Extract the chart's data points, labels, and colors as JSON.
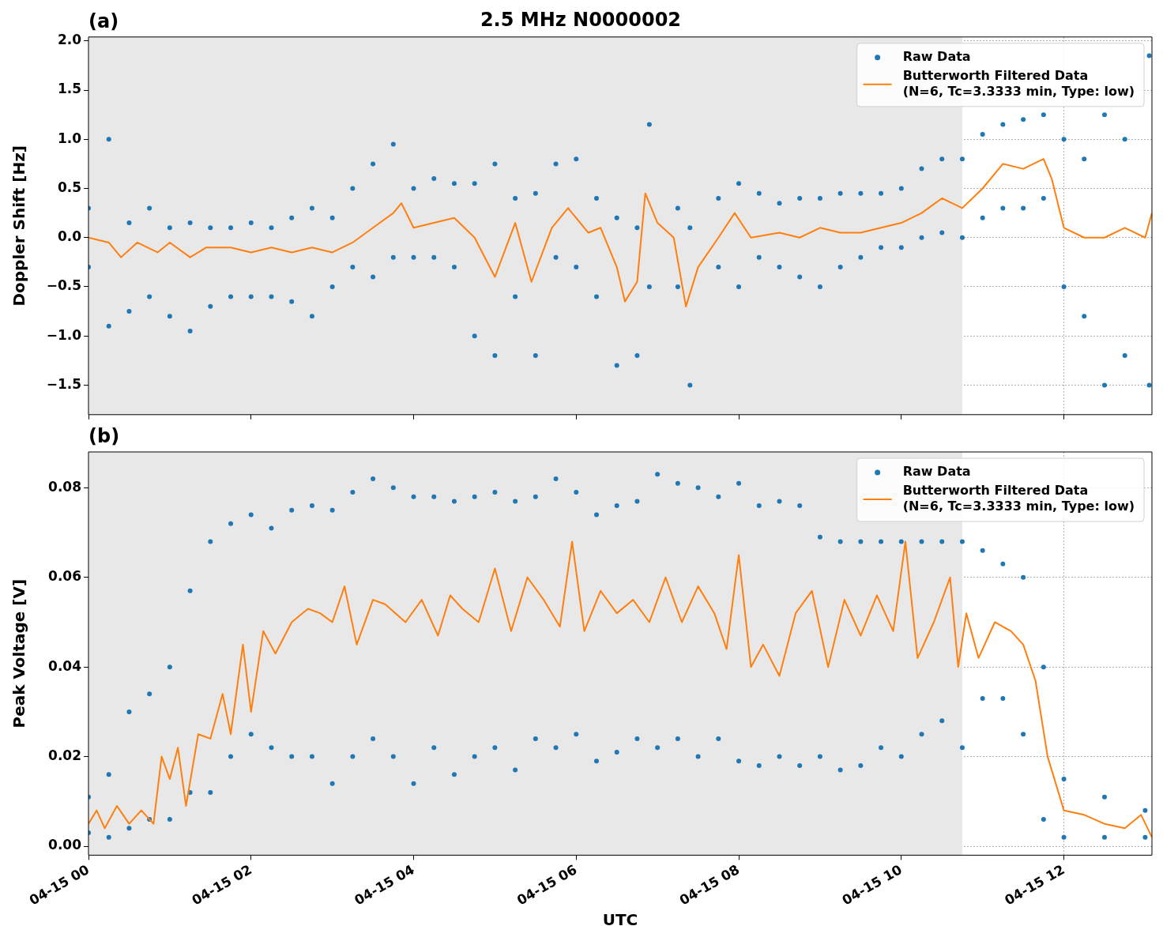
{
  "chart_data": [
    {
      "type": "scatter",
      "title": "2.5 MHz N0000002",
      "annotations": [
        "(a)"
      ],
      "ylabel": "Doppler Shift [Hz]",
      "xlim": [
        "--04-15T00:00",
        "--04-15T13:05"
      ],
      "xticks": [
        {
          "value": "--04-15T00:00",
          "label": null
        },
        {
          "value": "--04-15T02:00",
          "label": null
        },
        {
          "value": "--04-15T04:00",
          "label": null
        },
        {
          "value": "--04-15T06:00",
          "label": null
        },
        {
          "value": "--04-15T08:00",
          "label": null
        },
        {
          "value": "--04-15T10:00",
          "label": null
        },
        {
          "value": "--04-15T12:00",
          "label": null
        }
      ],
      "ylim": [
        -1.8,
        2.04
      ],
      "yticks": [
        {
          "value": -1.5,
          "label": "−1.5"
        },
        {
          "value": -1,
          "label": "−1.0"
        },
        {
          "value": -0.5,
          "label": "−0.5"
        },
        {
          "value": 0,
          "label": "0.0"
        },
        {
          "value": 0.5,
          "label": "0.5"
        },
        {
          "value": 1,
          "label": "1.0"
        },
        {
          "value": 1.5,
          "label": "1.5"
        },
        {
          "value": 2,
          "label": "2.0"
        }
      ],
      "grid": true,
      "legend": "top right",
      "tick_labels": "y",
      "bands": [
        {
          "axis": "x",
          "from": "--04-15T00:00",
          "to": "--04-15T10:45",
          "color": "#e8e8e8"
        }
      ],
      "series": [
        {
          "name": "Raw Data",
          "color": "#1f77b4",
          "marker": "circle",
          "x": [
            "--04-15T00:00",
            "--04-15T00:00",
            "--04-15T00:15",
            "--04-15T00:15",
            "--04-15T00:30",
            "--04-15T00:30",
            "--04-15T00:45",
            "--04-15T00:45",
            "--04-15T01:00",
            "--04-15T01:00",
            "--04-15T01:15",
            "--04-15T01:15",
            "--04-15T01:30",
            "--04-15T01:30",
            "--04-15T01:45",
            "--04-15T01:45",
            "--04-15T02:00",
            "--04-15T02:00",
            "--04-15T02:15",
            "--04-15T02:15",
            "--04-15T02:30",
            "--04-15T02:30",
            "--04-15T02:45",
            "--04-15T02:45",
            "--04-15T03:00",
            "--04-15T03:00",
            "--04-15T03:15",
            "--04-15T03:15",
            "--04-15T03:30",
            "--04-15T03:30",
            "--04-15T03:45",
            "--04-15T03:45",
            "--04-15T04:00",
            "--04-15T04:00",
            "--04-15T04:15",
            "--04-15T04:15",
            "--04-15T04:30",
            "--04-15T04:30",
            "--04-15T04:45",
            "--04-15T04:45",
            "--04-15T05:00",
            "--04-15T05:00",
            "--04-15T05:15",
            "--04-15T05:15",
            "--04-15T05:30",
            "--04-15T05:30",
            "--04-15T05:45",
            "--04-15T05:45",
            "--04-15T06:00",
            "--04-15T06:00",
            "--04-15T06:15",
            "--04-15T06:15",
            "--04-15T06:30",
            "--04-15T06:30",
            "--04-15T06:45",
            "--04-15T06:45",
            "--04-15T06:54",
            "--04-15T06:54",
            "--04-15T07:15",
            "--04-15T07:15",
            "--04-15T07:24",
            "--04-15T07:24",
            "--04-15T07:45",
            "--04-15T07:45",
            "--04-15T08:00",
            "--04-15T08:00",
            "--04-15T08:15",
            "--04-15T08:15",
            "--04-15T08:30",
            "--04-15T08:30",
            "--04-15T08:45",
            "--04-15T08:45",
            "--04-15T09:00",
            "--04-15T09:00",
            "--04-15T09:15",
            "--04-15T09:15",
            "--04-15T09:30",
            "--04-15T09:30",
            "--04-15T09:45",
            "--04-15T09:45",
            "--04-15T10:00",
            "--04-15T10:00",
            "--04-15T10:15",
            "--04-15T10:15",
            "--04-15T10:30",
            "--04-15T10:30",
            "--04-15T10:45",
            "--04-15T10:45",
            "--04-15T11:00",
            "--04-15T11:00",
            "--04-15T11:15",
            "--04-15T11:15",
            "--04-15T11:30",
            "--04-15T11:30",
            "--04-15T11:45",
            "--04-15T11:45",
            "--04-15T12:00",
            "--04-15T12:00",
            "--04-15T12:15",
            "--04-15T12:15",
            "--04-15T12:30",
            "--04-15T12:30",
            "--04-15T12:45",
            "--04-15T12:45",
            "--04-15T13:03",
            "--04-15T13:03"
          ],
          "values": [
            0.3,
            -0.3,
            1.0,
            -0.9,
            0.15,
            -0.75,
            0.3,
            -0.6,
            0.1,
            -0.8,
            0.15,
            -0.95,
            0.1,
            -0.7,
            0.1,
            -0.6,
            0.15,
            -0.6,
            0.1,
            -0.6,
            0.2,
            -0.65,
            0.3,
            -0.8,
            0.2,
            -0.5,
            0.5,
            -0.3,
            0.75,
            -0.4,
            0.95,
            -0.2,
            0.5,
            -0.2,
            0.6,
            -0.2,
            0.55,
            -0.3,
            0.55,
            -1.0,
            0.75,
            -1.2,
            0.4,
            -0.6,
            0.45,
            -1.2,
            0.75,
            -0.2,
            0.8,
            -0.3,
            0.4,
            -0.6,
            0.2,
            -1.3,
            0.1,
            -1.2,
            1.15,
            -0.5,
            0.3,
            -0.5,
            0.1,
            -1.5,
            0.4,
            -0.3,
            0.55,
            -0.5,
            0.45,
            -0.2,
            0.35,
            -0.3,
            0.4,
            -0.4,
            0.4,
            -0.5,
            0.45,
            -0.3,
            0.45,
            -0.2,
            0.45,
            -0.1,
            0.5,
            -0.1,
            0.7,
            0.0,
            0.8,
            0.05,
            0.8,
            0.0,
            1.05,
            0.2,
            1.15,
            0.3,
            1.2,
            0.3,
            1.25,
            0.4,
            1.0,
            -0.5,
            0.8,
            -0.8,
            1.25,
            -1.5,
            1.0,
            -1.2,
            1.85,
            -1.5
          ]
        },
        {
          "type": "line",
          "name": "Butterworth Filtered Data\n(N=6, Tc=3.3333 min, Type: low)",
          "color": "#ff7f0e",
          "x": [
            "--04-15T00:00",
            "--04-15T00:15",
            "--04-15T00:24",
            "--04-15T00:36",
            "--04-15T00:51",
            "--04-15T01:00",
            "--04-15T01:15",
            "--04-15T01:27",
            "--04-15T01:45",
            "--04-15T02:00",
            "--04-15T02:15",
            "--04-15T02:30",
            "--04-15T02:45",
            "--04-15T03:00",
            "--04-15T03:15",
            "--04-15T03:30",
            "--04-15T03:45",
            "--04-15T03:51",
            "--04-15T04:00",
            "--04-15T04:15",
            "--04-15T04:30",
            "--04-15T04:45",
            "--04-15T05:00",
            "--04-15T05:15",
            "--04-15T05:27",
            "--04-15T05:42",
            "--04-15T05:54",
            "--04-15T06:09",
            "--04-15T06:18",
            "--04-15T06:30",
            "--04-15T06:36",
            "--04-15T06:45",
            "--04-15T06:51",
            "--04-15T07:00",
            "--04-15T07:12",
            "--04-15T07:21",
            "--04-15T07:30",
            "--04-15T07:45",
            "--04-15T07:57",
            "--04-15T08:09",
            "--04-15T08:30",
            "--04-15T08:45",
            "--04-15T09:00",
            "--04-15T09:15",
            "--04-15T09:30",
            "--04-15T09:45",
            "--04-15T10:00",
            "--04-15T10:15",
            "--04-15T10:30",
            "--04-15T10:45",
            "--04-15T11:00",
            "--04-15T11:15",
            "--04-15T11:30",
            "--04-15T11:45",
            "--04-15T11:51",
            "--04-15T12:00",
            "--04-15T12:15",
            "--04-15T12:30",
            "--04-15T12:45",
            "--04-15T13:00",
            "--04-15T13:05"
          ],
          "values": [
            0,
            -0.05,
            -0.2,
            -0.05,
            -0.15,
            -0.05,
            -0.2,
            -0.1,
            -0.1,
            -0.15,
            -0.1,
            -0.15,
            -0.1,
            -0.15,
            -0.05,
            0.1,
            0.25,
            0.35,
            0.1,
            0.15,
            0.2,
            0,
            -0.4,
            0.15,
            -0.45,
            0.1,
            0.3,
            0.05,
            0.1,
            -0.3,
            -0.65,
            -0.45,
            0.45,
            0.15,
            0,
            -0.7,
            -0.3,
            0,
            0.25,
            0,
            0.05,
            0,
            0.1,
            0.05,
            0.05,
            0.1,
            0.15,
            0.25,
            0.4,
            0.3,
            0.5,
            0.75,
            0.7,
            0.8,
            0.6,
            0.1,
            0,
            0,
            0.1,
            0,
            0.25
          ]
        }
      ]
    },
    {
      "type": "scatter",
      "annotations": [
        "(b)"
      ],
      "xlabel": "UTC",
      "ylabel": "Peak Voltage [V]",
      "xlim": [
        "--04-15T00:00",
        "--04-15T13:05"
      ],
      "xticks": [
        {
          "value": "--04-15T00:00",
          "label": "04-15 00"
        },
        {
          "value": "--04-15T02:00",
          "label": "04-15 02"
        },
        {
          "value": "--04-15T04:00",
          "label": "04-15 04"
        },
        {
          "value": "--04-15T06:00",
          "label": "04-15 06"
        },
        {
          "value": "--04-15T08:00",
          "label": "04-15 08"
        },
        {
          "value": "--04-15T10:00",
          "label": "04-15 10"
        },
        {
          "value": "--04-15T12:00",
          "label": "04-15 12"
        }
      ],
      "ylim": [
        -0.002,
        0.088
      ],
      "yticks": [
        {
          "value": 0,
          "label": "0.00"
        },
        {
          "value": 0.02,
          "label": "0.02"
        },
        {
          "value": 0.04,
          "label": "0.04"
        },
        {
          "value": 0.06,
          "label": "0.06"
        },
        {
          "value": 0.08,
          "label": "0.08"
        }
      ],
      "grid": true,
      "legend": "top right",
      "bands": [
        {
          "axis": "x",
          "from": "--04-15T00:00",
          "to": "--04-15T10:45",
          "color": "#e8e8e8"
        }
      ],
      "series": [
        {
          "name": "Raw Data",
          "color": "#1f77b4",
          "x": [
            "--04-15T00:00",
            "--04-15T00:00",
            "--04-15T00:15",
            "--04-15T00:15",
            "--04-15T00:30",
            "--04-15T00:30",
            "--04-15T00:45",
            "--04-15T00:45",
            "--04-15T01:00",
            "--04-15T01:00",
            "--04-15T01:15",
            "--04-15T01:15",
            "--04-15T01:30",
            "--04-15T01:30",
            "--04-15T01:45",
            "--04-15T01:45",
            "--04-15T02:00",
            "--04-15T02:00",
            "--04-15T02:15",
            "--04-15T02:15",
            "--04-15T02:30",
            "--04-15T02:30",
            "--04-15T02:45",
            "--04-15T02:45",
            "--04-15T03:00",
            "--04-15T03:00",
            "--04-15T03:15",
            "--04-15T03:15",
            "--04-15T03:30",
            "--04-15T03:30",
            "--04-15T03:45",
            "--04-15T03:45",
            "--04-15T04:00",
            "--04-15T04:00",
            "--04-15T04:15",
            "--04-15T04:15",
            "--04-15T04:30",
            "--04-15T04:30",
            "--04-15T04:45",
            "--04-15T04:45",
            "--04-15T05:00",
            "--04-15T05:00",
            "--04-15T05:15",
            "--04-15T05:15",
            "--04-15T05:30",
            "--04-15T05:30",
            "--04-15T05:45",
            "--04-15T05:45",
            "--04-15T06:00",
            "--04-15T06:00",
            "--04-15T06:15",
            "--04-15T06:15",
            "--04-15T06:30",
            "--04-15T06:30",
            "--04-15T06:45",
            "--04-15T06:45",
            "--04-15T07:00",
            "--04-15T07:00",
            "--04-15T07:15",
            "--04-15T07:15",
            "--04-15T07:30",
            "--04-15T07:30",
            "--04-15T07:45",
            "--04-15T07:45",
            "--04-15T08:00",
            "--04-15T08:00",
            "--04-15T08:15",
            "--04-15T08:15",
            "--04-15T08:30",
            "--04-15T08:30",
            "--04-15T08:45",
            "--04-15T08:45",
            "--04-15T09:00",
            "--04-15T09:00",
            "--04-15T09:15",
            "--04-15T09:15",
            "--04-15T09:30",
            "--04-15T09:30",
            "--04-15T09:45",
            "--04-15T09:45",
            "--04-15T10:00",
            "--04-15T10:00",
            "--04-15T10:15",
            "--04-15T10:15",
            "--04-15T10:30",
            "--04-15T10:30",
            "--04-15T10:45",
            "--04-15T10:45",
            "--04-15T11:00",
            "--04-15T11:00",
            "--04-15T11:15",
            "--04-15T11:15",
            "--04-15T11:30",
            "--04-15T11:30",
            "--04-15T11:45",
            "--04-15T11:45",
            "--04-15T12:00",
            "--04-15T12:00",
            "--04-15T12:30",
            "--04-15T12:30",
            "--04-15T13:00",
            "--04-15T13:00"
          ],
          "values": [
            0.011,
            0.003,
            0.016,
            0.002,
            0.03,
            0.004,
            0.034,
            0.006,
            0.04,
            0.006,
            0.057,
            0.012,
            0.068,
            0.012,
            0.072,
            0.02,
            0.074,
            0.025,
            0.071,
            0.022,
            0.075,
            0.02,
            0.076,
            0.02,
            0.075,
            0.014,
            0.079,
            0.02,
            0.082,
            0.024,
            0.08,
            0.02,
            0.078,
            0.014,
            0.078,
            0.022,
            0.077,
            0.016,
            0.078,
            0.02,
            0.079,
            0.022,
            0.077,
            0.017,
            0.078,
            0.024,
            0.082,
            0.022,
            0.079,
            0.025,
            0.074,
            0.019,
            0.076,
            0.021,
            0.077,
            0.024,
            0.083,
            0.022,
            0.081,
            0.024,
            0.08,
            0.02,
            0.078,
            0.024,
            0.081,
            0.019,
            0.076,
            0.018,
            0.077,
            0.02,
            0.076,
            0.018,
            0.069,
            0.02,
            0.068,
            0.017,
            0.068,
            0.018,
            0.068,
            0.022,
            0.068,
            0.02,
            0.068,
            0.025,
            0.068,
            0.028,
            0.068,
            0.022,
            0.066,
            0.033,
            0.063,
            0.033,
            0.06,
            0.025,
            0.04,
            0.006,
            0.015,
            0.002,
            0.011,
            0.002,
            0.008,
            0.002
          ]
        },
        {
          "type": "line",
          "name": "Butterworth Filtered Data\n(N=6, Tc=3.3333 min, Type: low)",
          "color": "#ff7f0e",
          "x": [
            "--04-15T00:00",
            "--04-15T00:06",
            "--04-15T00:12",
            "--04-15T00:21",
            "--04-15T00:30",
            "--04-15T00:39",
            "--04-15T00:48",
            "--04-15T00:54",
            "--04-15T01:00",
            "--04-15T01:06",
            "--04-15T01:12",
            "--04-15T01:21",
            "--04-15T01:30",
            "--04-15T01:39",
            "--04-15T01:45",
            "--04-15T01:54",
            "--04-15T02:00",
            "--04-15T02:09",
            "--04-15T02:18",
            "--04-15T02:30",
            "--04-15T02:42",
            "--04-15T02:51",
            "--04-15T03:00",
            "--04-15T03:09",
            "--04-15T03:18",
            "--04-15T03:30",
            "--04-15T03:39",
            "--04-15T03:54",
            "--04-15T04:06",
            "--04-15T04:18",
            "--04-15T04:27",
            "--04-15T04:36",
            "--04-15T04:48",
            "--04-15T05:00",
            "--04-15T05:12",
            "--04-15T05:24",
            "--04-15T05:36",
            "--04-15T05:48",
            "--04-15T05:57",
            "--04-15T06:06",
            "--04-15T06:18",
            "--04-15T06:30",
            "--04-15T06:42",
            "--04-15T06:54",
            "--04-15T07:06",
            "--04-15T07:18",
            "--04-15T07:30",
            "--04-15T07:42",
            "--04-15T07:51",
            "--04-15T08:00",
            "--04-15T08:09",
            "--04-15T08:18",
            "--04-15T08:30",
            "--04-15T08:42",
            "--04-15T08:54",
            "--04-15T09:06",
            "--04-15T09:18",
            "--04-15T09:30",
            "--04-15T09:42",
            "--04-15T09:54",
            "--04-15T10:03",
            "--04-15T10:12",
            "--04-15T10:24",
            "--04-15T10:36",
            "--04-15T10:42",
            "--04-15T10:48",
            "--04-15T10:57",
            "--04-15T11:09",
            "--04-15T11:21",
            "--04-15T11:30",
            "--04-15T11:39",
            "--04-15T11:48",
            "--04-15T12:00",
            "--04-15T12:15",
            "--04-15T12:30",
            "--04-15T12:45",
            "--04-15T12:57",
            "--04-15T13:05"
          ],
          "values": [
            0.005,
            0.008,
            0.004,
            0.009,
            0.005,
            0.008,
            0.005,
            0.02,
            0.015,
            0.022,
            0.009,
            0.025,
            0.024,
            0.034,
            0.025,
            0.045,
            0.03,
            0.048,
            0.043,
            0.05,
            0.053,
            0.052,
            0.05,
            0.058,
            0.045,
            0.055,
            0.054,
            0.05,
            0.055,
            0.047,
            0.056,
            0.053,
            0.05,
            0.062,
            0.048,
            0.06,
            0.055,
            0.049,
            0.068,
            0.048,
            0.057,
            0.052,
            0.055,
            0.05,
            0.06,
            0.05,
            0.058,
            0.052,
            0.044,
            0.065,
            0.04,
            0.045,
            0.038,
            0.052,
            0.057,
            0.04,
            0.055,
            0.047,
            0.056,
            0.048,
            0.068,
            0.042,
            0.05,
            0.06,
            0.04,
            0.052,
            0.042,
            0.05,
            0.048,
            0.045,
            0.037,
            0.02,
            0.008,
            0.007,
            0.005,
            0.004,
            0.007,
            0.002
          ]
        }
      ]
    }
  ]
}
